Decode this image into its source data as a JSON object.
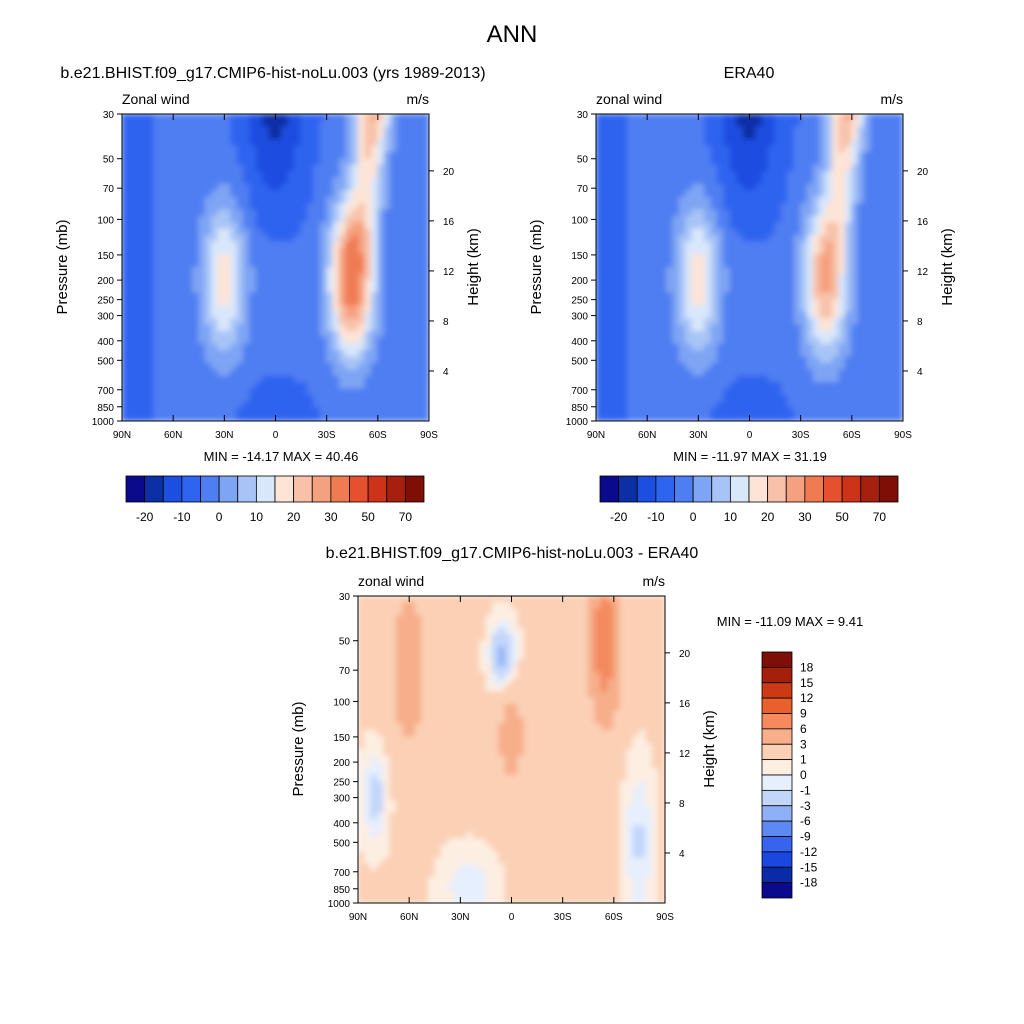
{
  "page": {
    "title": "ANN"
  },
  "palettes": {
    "abs": [
      "#0a0a8c",
      "#0c2fa6",
      "#1c4ee0",
      "#2e64f0",
      "#4f7ef2",
      "#7ea4f4",
      "#a8c4f7",
      "#d9e7fb",
      "#fde4d6",
      "#f8c2aa",
      "#f5a07e",
      "#f07a52",
      "#e6502e",
      "#cc3318",
      "#a71f0e",
      "#7f0f06"
    ],
    "diff": [
      "#0a0a8c",
      "#0b2aa8",
      "#1a47e0",
      "#3664ef",
      "#5e88f2",
      "#8fb0f6",
      "#c2d6fa",
      "#e6effd",
      "#fdeee2",
      "#fbd0b5",
      "#f7ae8a",
      "#f48a5e",
      "#ea5f2e",
      "#cc3a14",
      "#a5200a",
      "#7d0f08"
    ]
  },
  "chart_data": [
    {
      "type": "heatmap",
      "panel": "model",
      "title": "b.e21.BHIST.f09_g17.CMIP6-hist-noLu.003 (yrs 1989-2013)",
      "left_label": "Zonal wind",
      "right_label": "m/s",
      "ylabel": "Pressure (mb)",
      "y2label": "Height (km)",
      "x_ticks": [
        "90N",
        "60N",
        "30N",
        "0",
        "30S",
        "60S",
        "90S"
      ],
      "y_ticks": [
        30,
        50,
        70,
        100,
        150,
        200,
        250,
        300,
        400,
        500,
        700,
        850,
        1000
      ],
      "y2_ticks": [
        20,
        16,
        12,
        8,
        4
      ],
      "minmax": "MIN = -14.17  MAX =  40.46",
      "colorbar": {
        "labels": [
          "-20",
          "-10",
          "0",
          "10",
          "20",
          "30",
          "50",
          "70"
        ],
        "levels": [
          -20,
          -15,
          -10,
          -5,
          0,
          5,
          10,
          15,
          20,
          25,
          30,
          40,
          50,
          60,
          70
        ]
      },
      "jets": [
        {
          "lat": 30,
          "p": 200,
          "peak": 22
        },
        {
          "lat": -45,
          "p": 200,
          "peak": 40
        }
      ]
    },
    {
      "type": "heatmap",
      "panel": "obs",
      "title": "ERA40",
      "left_label": "zonal wind",
      "right_label": "m/s",
      "ylabel": "Pressure (mb)",
      "y2label": "Height (km)",
      "x_ticks": [
        "90N",
        "60N",
        "30N",
        "0",
        "30S",
        "60S",
        "90S"
      ],
      "y_ticks": [
        30,
        50,
        70,
        100,
        150,
        200,
        250,
        300,
        400,
        500,
        700,
        850,
        1000
      ],
      "y2_ticks": [
        20,
        16,
        12,
        8,
        4
      ],
      "minmax": "MIN = -11.97  MAX =  31.19",
      "colorbar": {
        "labels": [
          "-20",
          "-10",
          "0",
          "10",
          "20",
          "30",
          "50",
          "70"
        ],
        "levels": [
          -20,
          -15,
          -10,
          -5,
          0,
          5,
          10,
          15,
          20,
          25,
          30,
          40,
          50,
          60,
          70
        ]
      },
      "jets": [
        {
          "lat": 30,
          "p": 200,
          "peak": 22
        },
        {
          "lat": -45,
          "p": 200,
          "peak": 31
        }
      ]
    },
    {
      "type": "heatmap",
      "panel": "diff",
      "title": "b.e21.BHIST.f09_g17.CMIP6-hist-noLu.003 - ERA40",
      "left_label": "zonal wind",
      "right_label": "m/s",
      "ylabel": "Pressure (mb)",
      "y2label": "Height (km)",
      "x_ticks": [
        "90N",
        "60N",
        "30N",
        "0",
        "30S",
        "60S",
        "90S"
      ],
      "y_ticks": [
        30,
        50,
        70,
        100,
        150,
        200,
        250,
        300,
        400,
        500,
        700,
        850,
        1000
      ],
      "y2_ticks": [
        20,
        16,
        12,
        8,
        4
      ],
      "minmax": "MIN = -11.09  MAX =   9.41",
      "colorbar": {
        "labels": [
          "18",
          "15",
          "12",
          "9",
          "6",
          "3",
          "1",
          "0",
          "-1",
          "-3",
          "-6",
          "-9",
          "-12",
          "-15",
          "-18"
        ],
        "levels": [
          -18,
          -15,
          -12,
          -9,
          -6,
          -3,
          -1,
          0,
          1,
          3,
          6,
          9,
          12,
          15,
          18
        ]
      }
    }
  ]
}
